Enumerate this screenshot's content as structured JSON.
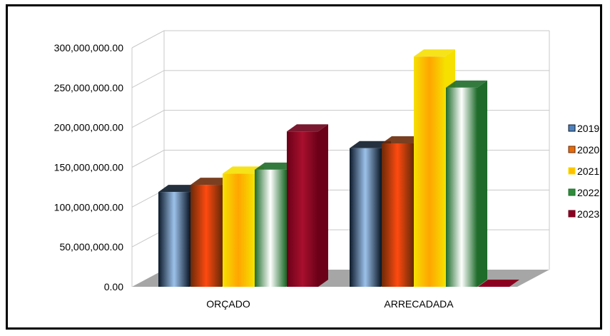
{
  "chart_data": {
    "type": "bar",
    "three_d": true,
    "categories": [
      "ORÇADO",
      "ARRECADADA"
    ],
    "series": [
      {
        "name": "2019",
        "values": [
          119000000,
          174000000
        ],
        "color": "#4f81bd",
        "dark": "#0d1a2a",
        "light": "#9cc2ea"
      },
      {
        "name": "2020",
        "values": [
          128000000,
          180000000
        ],
        "color": "#e36c0a",
        "dark": "#6b2a08",
        "light": "#ff4a10"
      },
      {
        "name": "2021",
        "values": [
          142000000,
          289000000
        ],
        "color": "#ffc000",
        "dark": "#f5e000",
        "light": "#ffa500"
      },
      {
        "name": "2022",
        "values": [
          147000000,
          250000000
        ],
        "color": "#2e8b3a",
        "dark": "#1e6b2a",
        "light": "#ffffff"
      },
      {
        "name": "2023",
        "values": [
          195000000,
          0
        ],
        "color": "#8b0020",
        "dark": "#6b0018",
        "light": "#a8102e"
      }
    ],
    "ylim": [
      0,
      300000000
    ],
    "yticks": [
      "0.00",
      "50,000,000.00",
      "100,000,000.00",
      "150,000,000.00",
      "200,000,000.00",
      "250,000,000.00",
      "300,000,000.00"
    ],
    "title": "",
    "xlabel": "",
    "ylabel": "",
    "grid": true,
    "legend_position": "right"
  }
}
